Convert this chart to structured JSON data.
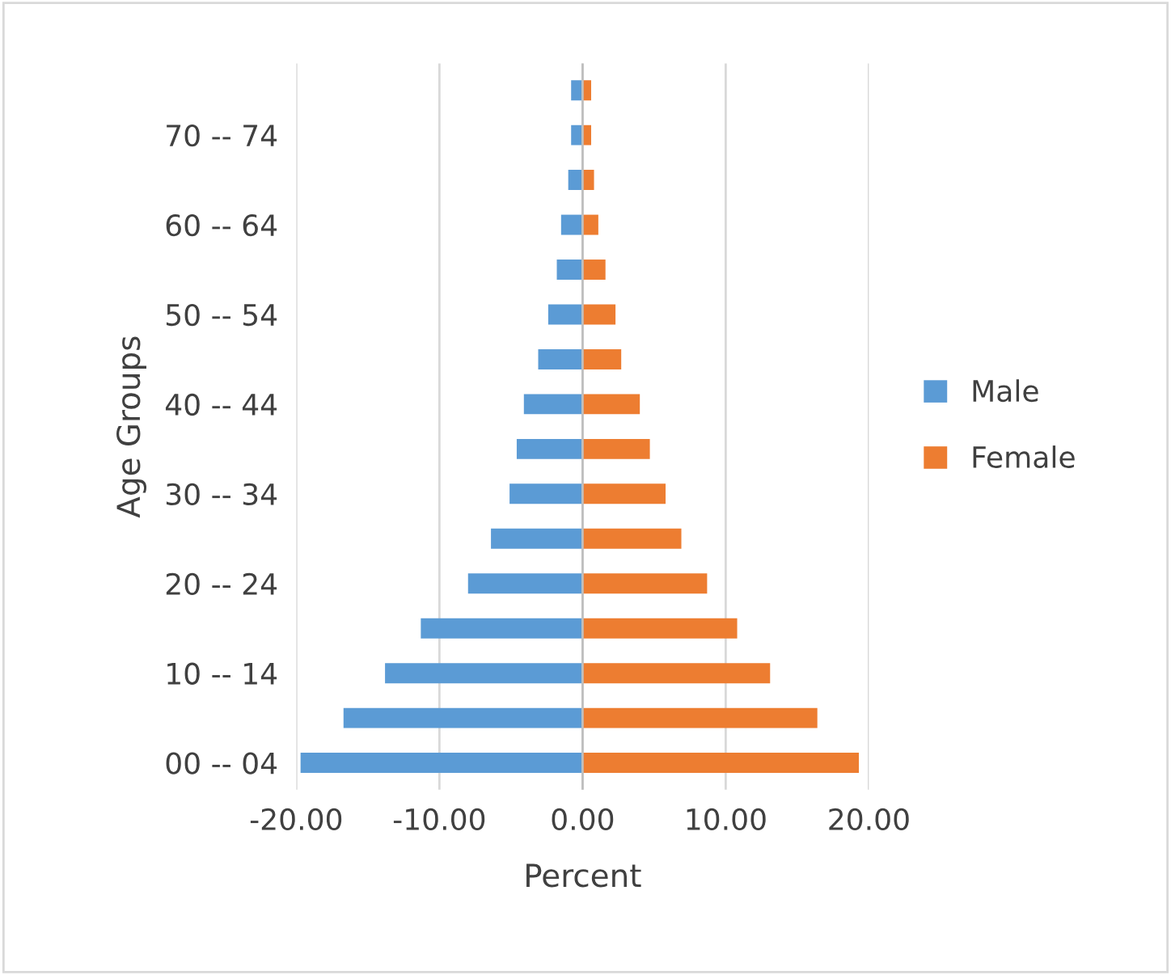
{
  "chart_data": {
    "type": "bar",
    "orientation": "horizontal",
    "stacked": true,
    "xlabel": "Percent",
    "ylabel": "Age Groups",
    "categories": [
      null,
      "70 -- 74",
      null,
      "60 -- 64",
      null,
      "50 -- 54",
      null,
      "40 -- 44",
      null,
      "30 -- 34",
      null,
      "20 -- 24",
      null,
      "10 -- 14",
      null,
      "00 -- 04"
    ],
    "series": [
      {
        "name": "Male",
        "color": "#5b9bd5",
        "values": [
          -0.8,
          -0.8,
          -1.0,
          -1.5,
          -1.8,
          -2.4,
          -3.1,
          -4.1,
          -4.6,
          -5.1,
          -6.4,
          -8.0,
          -11.3,
          -13.8,
          -16.7,
          -19.7
        ]
      },
      {
        "name": "Female",
        "color": "#ed7d31",
        "values": [
          0.6,
          0.6,
          0.8,
          1.1,
          1.6,
          2.3,
          2.7,
          4.0,
          4.7,
          5.8,
          6.9,
          8.7,
          10.8,
          13.1,
          16.4,
          19.3
        ]
      }
    ],
    "xlim": [
      -20,
      20
    ],
    "xticks": [
      {
        "value": -20,
        "label": "-20.00"
      },
      {
        "value": -10,
        "label": "-10.00"
      },
      {
        "value": 0,
        "label": "0.00"
      },
      {
        "value": 10,
        "label": "10.00"
      },
      {
        "value": 20,
        "label": "20.00"
      }
    ],
    "grid": "x",
    "legend": "right"
  }
}
